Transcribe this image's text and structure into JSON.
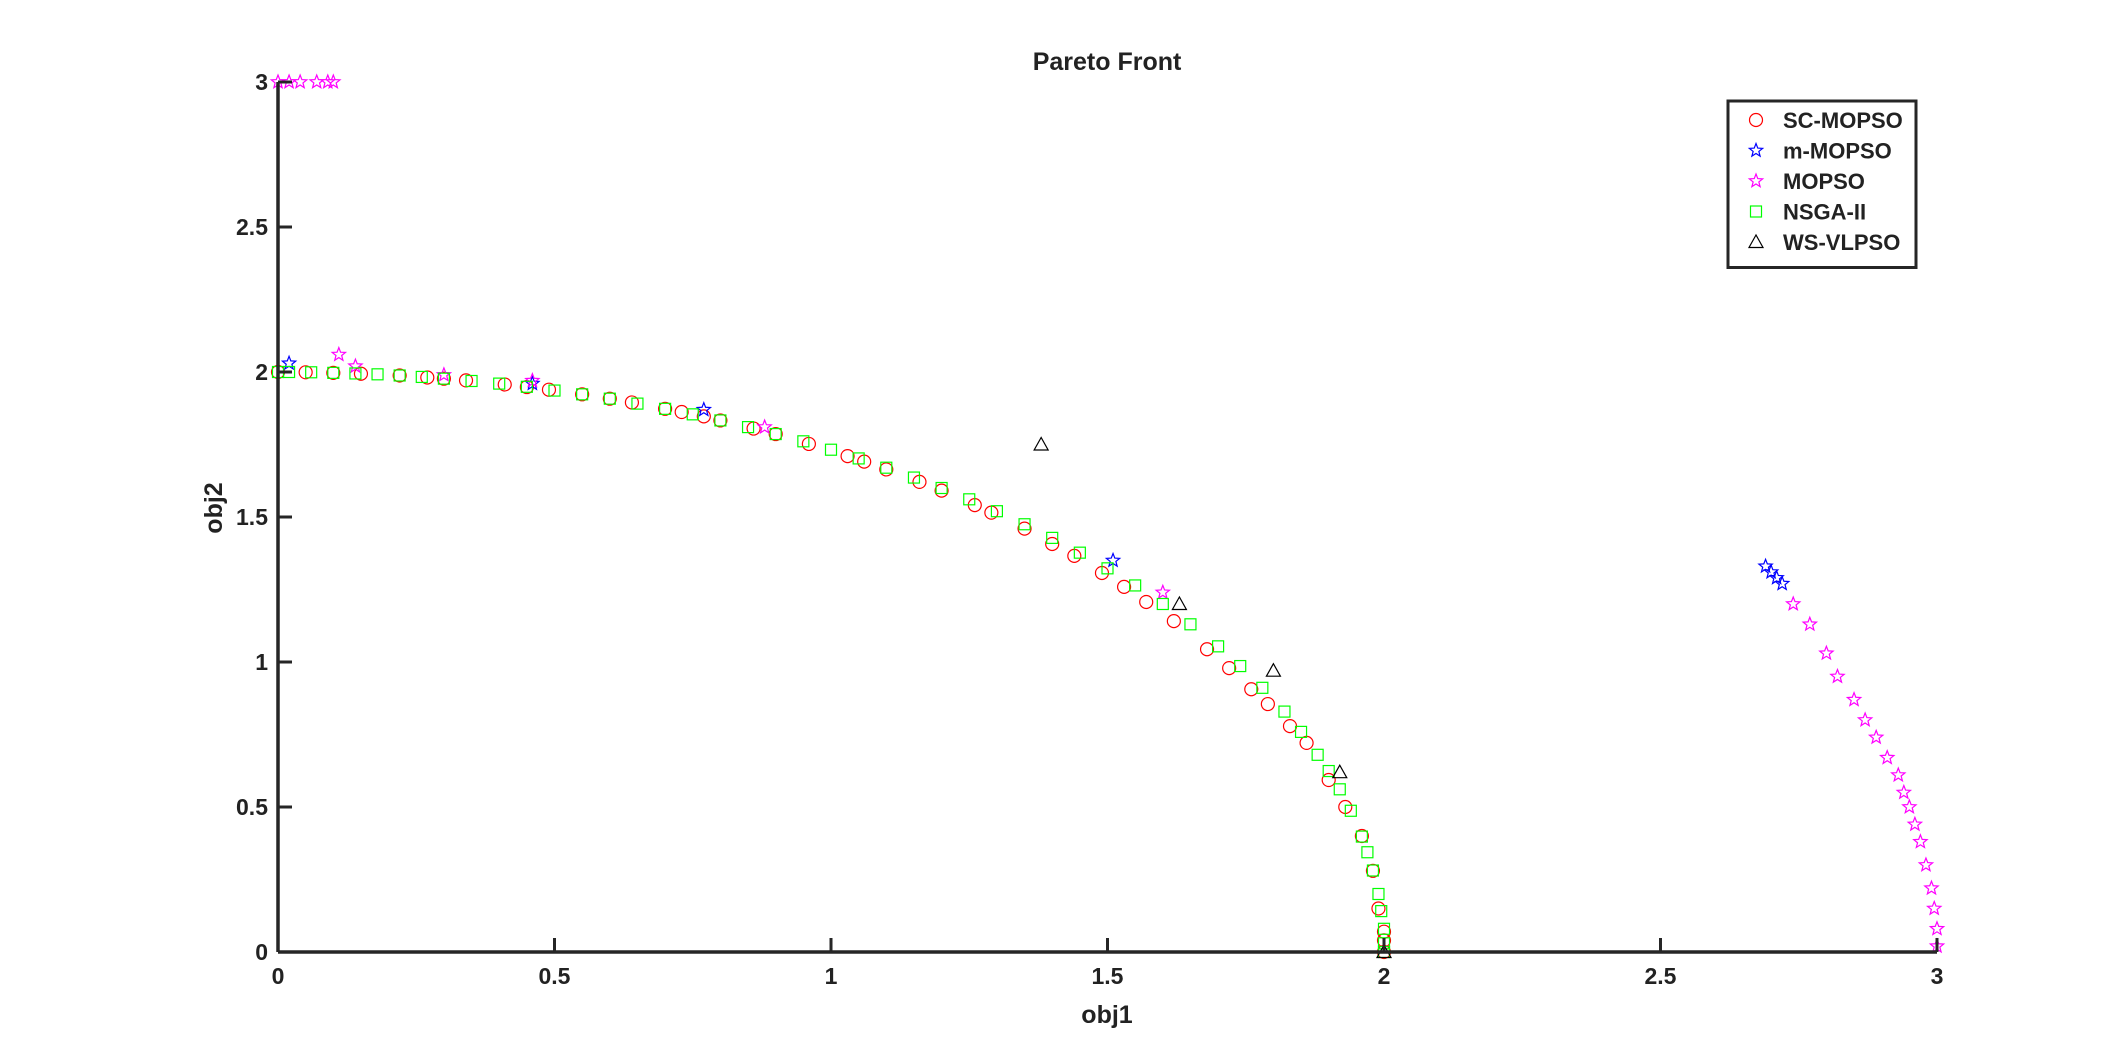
{
  "chart_data": {
    "type": "scatter",
    "title": "Pareto Front",
    "xlabel": "obj1",
    "ylabel": "obj2",
    "xlim": [
      0,
      3
    ],
    "ylim": [
      0,
      3
    ],
    "xticks": [
      "0",
      "0.5",
      "1",
      "1.5",
      "2",
      "2.5",
      "3"
    ],
    "yticks": [
      "0",
      "0.5",
      "1",
      "1.5",
      "2",
      "2.5",
      "3"
    ],
    "grid": false,
    "legend_position": "top-right",
    "series": [
      {
        "name": "SC-MOPSO",
        "marker": "circle",
        "color": "#ff0000",
        "x": [
          0.0,
          0.05,
          0.1,
          0.15,
          0.22,
          0.27,
          0.3,
          0.34,
          0.41,
          0.45,
          0.49,
          0.55,
          0.6,
          0.64,
          0.7,
          0.73,
          0.77,
          0.8,
          0.86,
          0.9,
          0.96,
          1.03,
          1.06,
          1.1,
          1.16,
          1.2,
          1.26,
          1.29,
          1.35,
          1.4,
          1.44,
          1.49,
          1.53,
          1.57,
          1.62,
          1.68,
          1.72,
          1.76,
          1.79,
          1.83,
          1.86,
          1.9,
          1.93,
          1.96,
          1.98,
          1.99,
          2.0,
          2.0,
          2.0
        ],
        "y": [
          2.0,
          1.999,
          1.997,
          1.994,
          1.988,
          1.981,
          1.977,
          1.971,
          1.957,
          1.948,
          1.939,
          1.923,
          1.908,
          1.895,
          1.873,
          1.862,
          1.847,
          1.833,
          1.805,
          1.786,
          1.752,
          1.71,
          1.691,
          1.664,
          1.621,
          1.591,
          1.541,
          1.515,
          1.46,
          1.407,
          1.366,
          1.307,
          1.259,
          1.207,
          1.141,
          1.044,
          0.979,
          0.906,
          0.855,
          0.779,
          0.721,
          0.593,
          0.5,
          0.4,
          0.28,
          0.15,
          0.07,
          0.04,
          0.0
        ]
      },
      {
        "name": "m-MOPSO",
        "marker": "star",
        "color": "#0000ff",
        "x": [
          0.02,
          0.46,
          0.77,
          1.51,
          2.69,
          2.7,
          2.71,
          2.72
        ],
        "y": [
          2.03,
          1.96,
          1.87,
          1.35,
          1.33,
          1.31,
          1.29,
          1.27
        ]
      },
      {
        "name": "MOPSO",
        "marker": "star",
        "color": "#ff00ff",
        "x": [
          0.0,
          0.02,
          0.04,
          0.07,
          0.09,
          0.1,
          0.11,
          0.14,
          0.3,
          0.46,
          0.88,
          1.6,
          2.74,
          2.77,
          2.8,
          2.82,
          2.85,
          2.87,
          2.89,
          2.91,
          2.93,
          2.94,
          2.95,
          2.96,
          2.97,
          2.98,
          2.99,
          2.995,
          3.0,
          3.0
        ],
        "y": [
          3.0,
          3.0,
          3.0,
          3.0,
          3.0,
          3.0,
          2.06,
          2.02,
          1.99,
          1.97,
          1.81,
          1.24,
          1.2,
          1.13,
          1.03,
          0.95,
          0.87,
          0.8,
          0.74,
          0.67,
          0.61,
          0.55,
          0.5,
          0.44,
          0.38,
          0.3,
          0.22,
          0.15,
          0.08,
          0.02
        ]
      },
      {
        "name": "NSGA-II",
        "marker": "square",
        "color": "#00ff00",
        "x": [
          0.0,
          0.02,
          0.06,
          0.1,
          0.14,
          0.18,
          0.22,
          0.26,
          0.3,
          0.35,
          0.4,
          0.45,
          0.5,
          0.55,
          0.6,
          0.65,
          0.7,
          0.75,
          0.8,
          0.85,
          0.9,
          0.95,
          1.0,
          1.05,
          1.1,
          1.15,
          1.2,
          1.25,
          1.3,
          1.35,
          1.4,
          1.45,
          1.5,
          1.55,
          1.6,
          1.65,
          1.7,
          1.74,
          1.78,
          1.82,
          1.85,
          1.88,
          1.9,
          1.92,
          1.94,
          1.96,
          1.97,
          1.98,
          1.99,
          1.995,
          2.0,
          2.0,
          2.0
        ],
        "y": [
          2.0,
          2.0,
          1.999,
          1.997,
          1.995,
          1.992,
          1.988,
          1.983,
          1.977,
          1.969,
          1.96,
          1.949,
          1.936,
          1.923,
          1.908,
          1.891,
          1.873,
          1.854,
          1.833,
          1.81,
          1.786,
          1.761,
          1.732,
          1.702,
          1.67,
          1.636,
          1.6,
          1.561,
          1.52,
          1.475,
          1.428,
          1.377,
          1.323,
          1.264,
          1.2,
          1.13,
          1.054,
          0.986,
          0.911,
          0.829,
          0.759,
          0.68,
          0.624,
          0.561,
          0.487,
          0.398,
          0.344,
          0.281,
          0.2,
          0.141,
          0.08,
          0.03,
          0.0
        ]
      },
      {
        "name": "WS-VLPSO",
        "marker": "triangle",
        "color": "#000000",
        "x": [
          1.38,
          1.63,
          1.8,
          1.92,
          2.0
        ],
        "y": [
          1.75,
          1.2,
          0.97,
          0.62,
          0.0
        ]
      }
    ]
  }
}
